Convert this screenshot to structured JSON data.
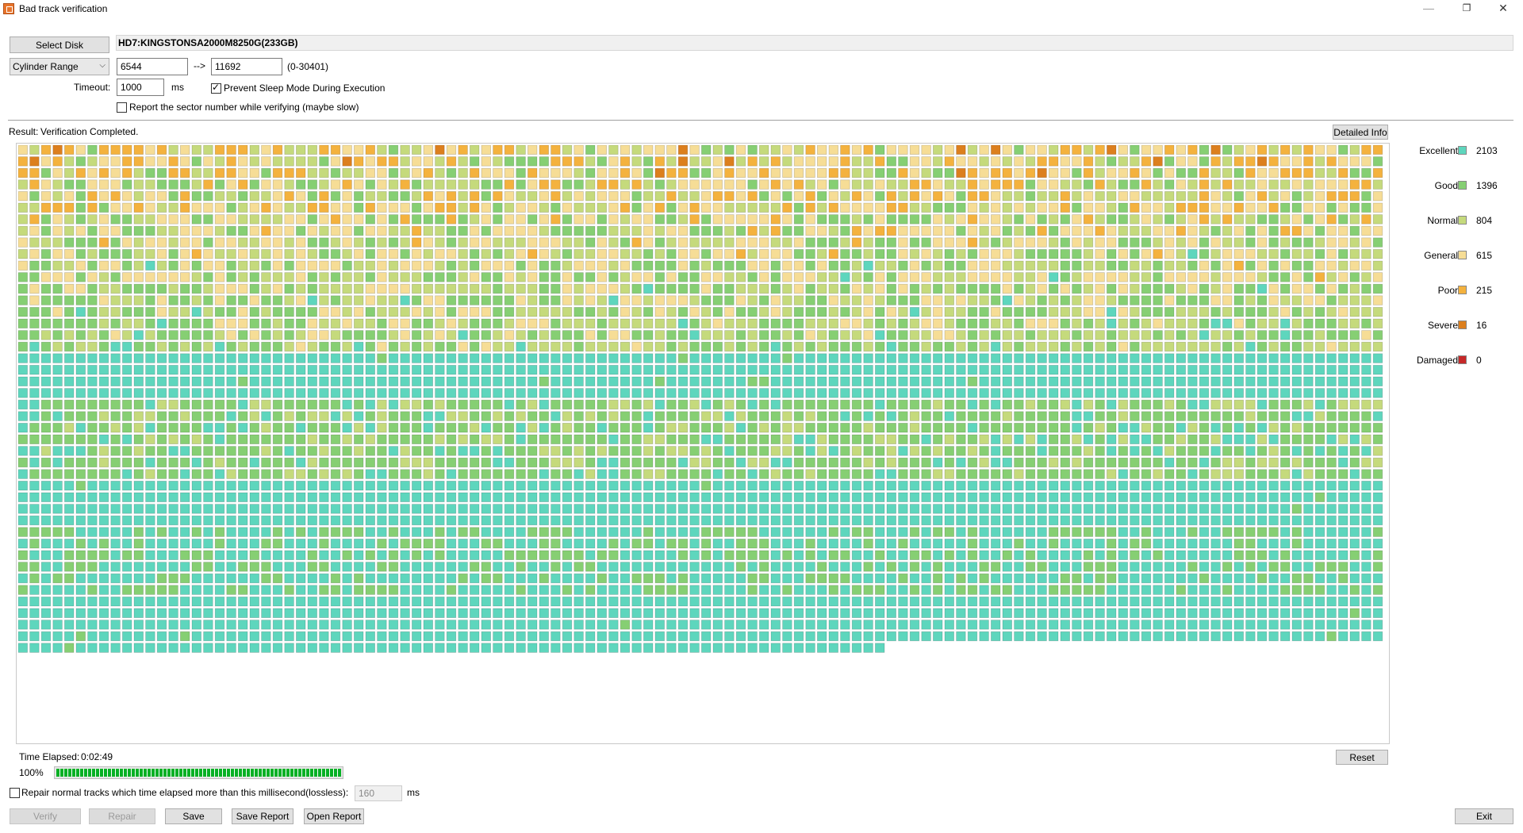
{
  "window": {
    "title": "Bad track verification"
  },
  "disk": {
    "select_label": "Select Disk",
    "name": "HD7:KINGSTONSA2000M8250G(233GB)"
  },
  "range": {
    "mode": "Cylinder Range",
    "start": "6544",
    "arrow": "-->",
    "end": "11692",
    "limits": "(0-30401)"
  },
  "timeout": {
    "label": "Timeout:",
    "value": "1000",
    "unit": "ms"
  },
  "options": {
    "prevent_sleep": "Prevent Sleep Mode During Execution",
    "prevent_sleep_checked": true,
    "report_sector": "Report the sector number while verifying (maybe slow)",
    "report_sector_checked": false
  },
  "result": {
    "label": "Result:",
    "text": "Verification Completed.",
    "detailed_info": "Detailed Info"
  },
  "legend": [
    {
      "name": "Excellent",
      "count": "2103",
      "color": "#5ed6bd"
    },
    {
      "name": "Good",
      "count": "1396",
      "color": "#86cf73"
    },
    {
      "name": "Normal",
      "count": "804",
      "color": "#c5da7c"
    },
    {
      "name": "General",
      "count": "615",
      "color": "#f6dd96"
    },
    {
      "name": "Poor",
      "count": "215",
      "color": "#f4b23e"
    },
    {
      "name": "Severe",
      "count": "16",
      "color": "#dc7f1e"
    },
    {
      "name": "Damaged",
      "count": "0",
      "color": "#c62828"
    }
  ],
  "time": {
    "label": "Time Elapsed:",
    "value": "0:02:49"
  },
  "progress": {
    "percent_label": "100%",
    "fraction": 1.0
  },
  "repair_option": {
    "label": "Repair normal tracks which time elapsed more than this millisecond(lossless):",
    "checked": false,
    "value": "160",
    "unit": "ms"
  },
  "buttons": {
    "reset": "Reset",
    "verify": "Verify",
    "repair": "Repair",
    "save": "Save",
    "save_report": "Save Report",
    "open_report": "Open Report",
    "exit": "Exit"
  },
  "window_controls": {
    "minimize": "—",
    "maximize": "❐",
    "close": "✕"
  }
}
